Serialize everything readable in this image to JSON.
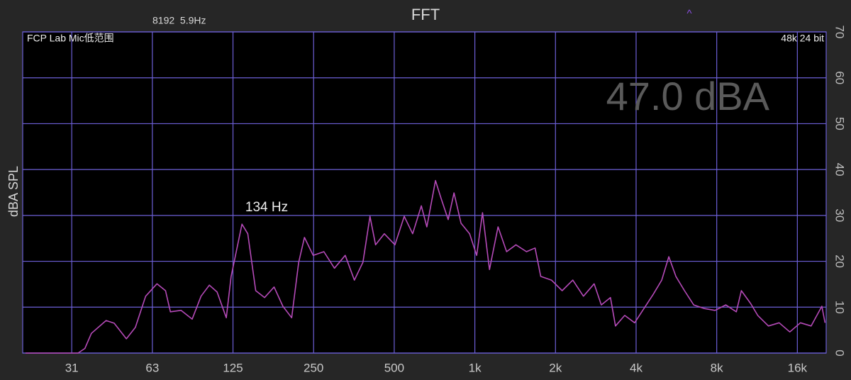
{
  "chart_data": {
    "type": "line",
    "title": "FFT",
    "info": "8192  5.9Hz",
    "marker": "^",
    "source": "FCP Lab Mic低范围",
    "format": "48k 24 bit",
    "level": "47.0 dBA",
    "ylabel": "dBA SPL",
    "annotations": [
      "134 Hz"
    ],
    "xscale": "log",
    "xlim": [
      20.5,
      20500
    ],
    "xticks": [
      {
        "value": 31.25,
        "label": "31"
      },
      {
        "value": 62.5,
        "label": "63"
      },
      125,
      250,
      500,
      {
        "value": 1000,
        "label": "1k"
      },
      {
        "value": 2000,
        "label": "2k"
      },
      {
        "value": 4000,
        "label": "4k"
      },
      {
        "value": 8000,
        "label": "8k"
      },
      {
        "value": 16000,
        "label": "16k"
      }
    ],
    "ylim": [
      0,
      70
    ],
    "yticks": [
      0,
      10,
      20,
      30,
      40,
      50,
      60,
      70
    ],
    "grid": true,
    "color": "#b54ab8",
    "x": [
      21,
      33,
      35,
      37,
      42,
      45,
      50,
      54,
      59,
      65,
      70,
      73,
      80,
      88,
      95,
      102,
      109,
      118,
      123,
      135,
      142,
      152,
      164,
      178,
      192,
      207,
      220,
      231,
      249,
      273,
      299,
      328,
      355,
      382,
      406,
      426,
      459,
      503,
      545,
      586,
      631,
      662,
      713,
      748,
      795,
      836,
      888,
      956,
      1016,
      1068,
      1134,
      1221,
      1314,
      1423,
      1559,
      1678,
      1762,
      1932,
      2118,
      2321,
      2544,
      2788,
      2965,
      3209,
      3350,
      3626,
      3950,
      4278,
      4633,
      4985,
      5300,
      5633,
      6062,
      6565,
      7196,
      7888,
      8645,
      9471,
      9890,
      10710,
      11380,
      12480,
      13680,
      14990,
      16430,
      18010,
      19750,
      20300
    ],
    "values": [
      0,
      0,
      1,
      4.3,
      7.1,
      6.5,
      3.1,
      5.6,
      12.4,
      15.1,
      13.6,
      9,
      9.3,
      7.4,
      12.4,
      14.8,
      13.3,
      7.7,
      16.7,
      28.1,
      26,
      13.6,
      12.1,
      14.4,
      10.2,
      7.7,
      19.8,
      25.2,
      21.3,
      22.1,
      18.5,
      21.3,
      15.9,
      19.8,
      29.8,
      23.6,
      26,
      23.6,
      29.8,
      26,
      32.1,
      27.5,
      37.6,
      33.7,
      29.1,
      34.9,
      28.3,
      26,
      21.3,
      30.6,
      18.2,
      27.5,
      22.1,
      23.6,
      22.1,
      22.9,
      16.7,
      15.9,
      13.6,
      15.9,
      12.4,
      15.1,
      10.5,
      12.1,
      5.9,
      8.2,
      6.6,
      9.7,
      12.8,
      15.9,
      21,
      16.7,
      13.6,
      10.5,
      9.7,
      9.3,
      10.5,
      9,
      13.6,
      10.8,
      8.2,
      5.9,
      6.6,
      4.6,
      6.6,
      5.9,
      10.2,
      6.6
    ]
  }
}
